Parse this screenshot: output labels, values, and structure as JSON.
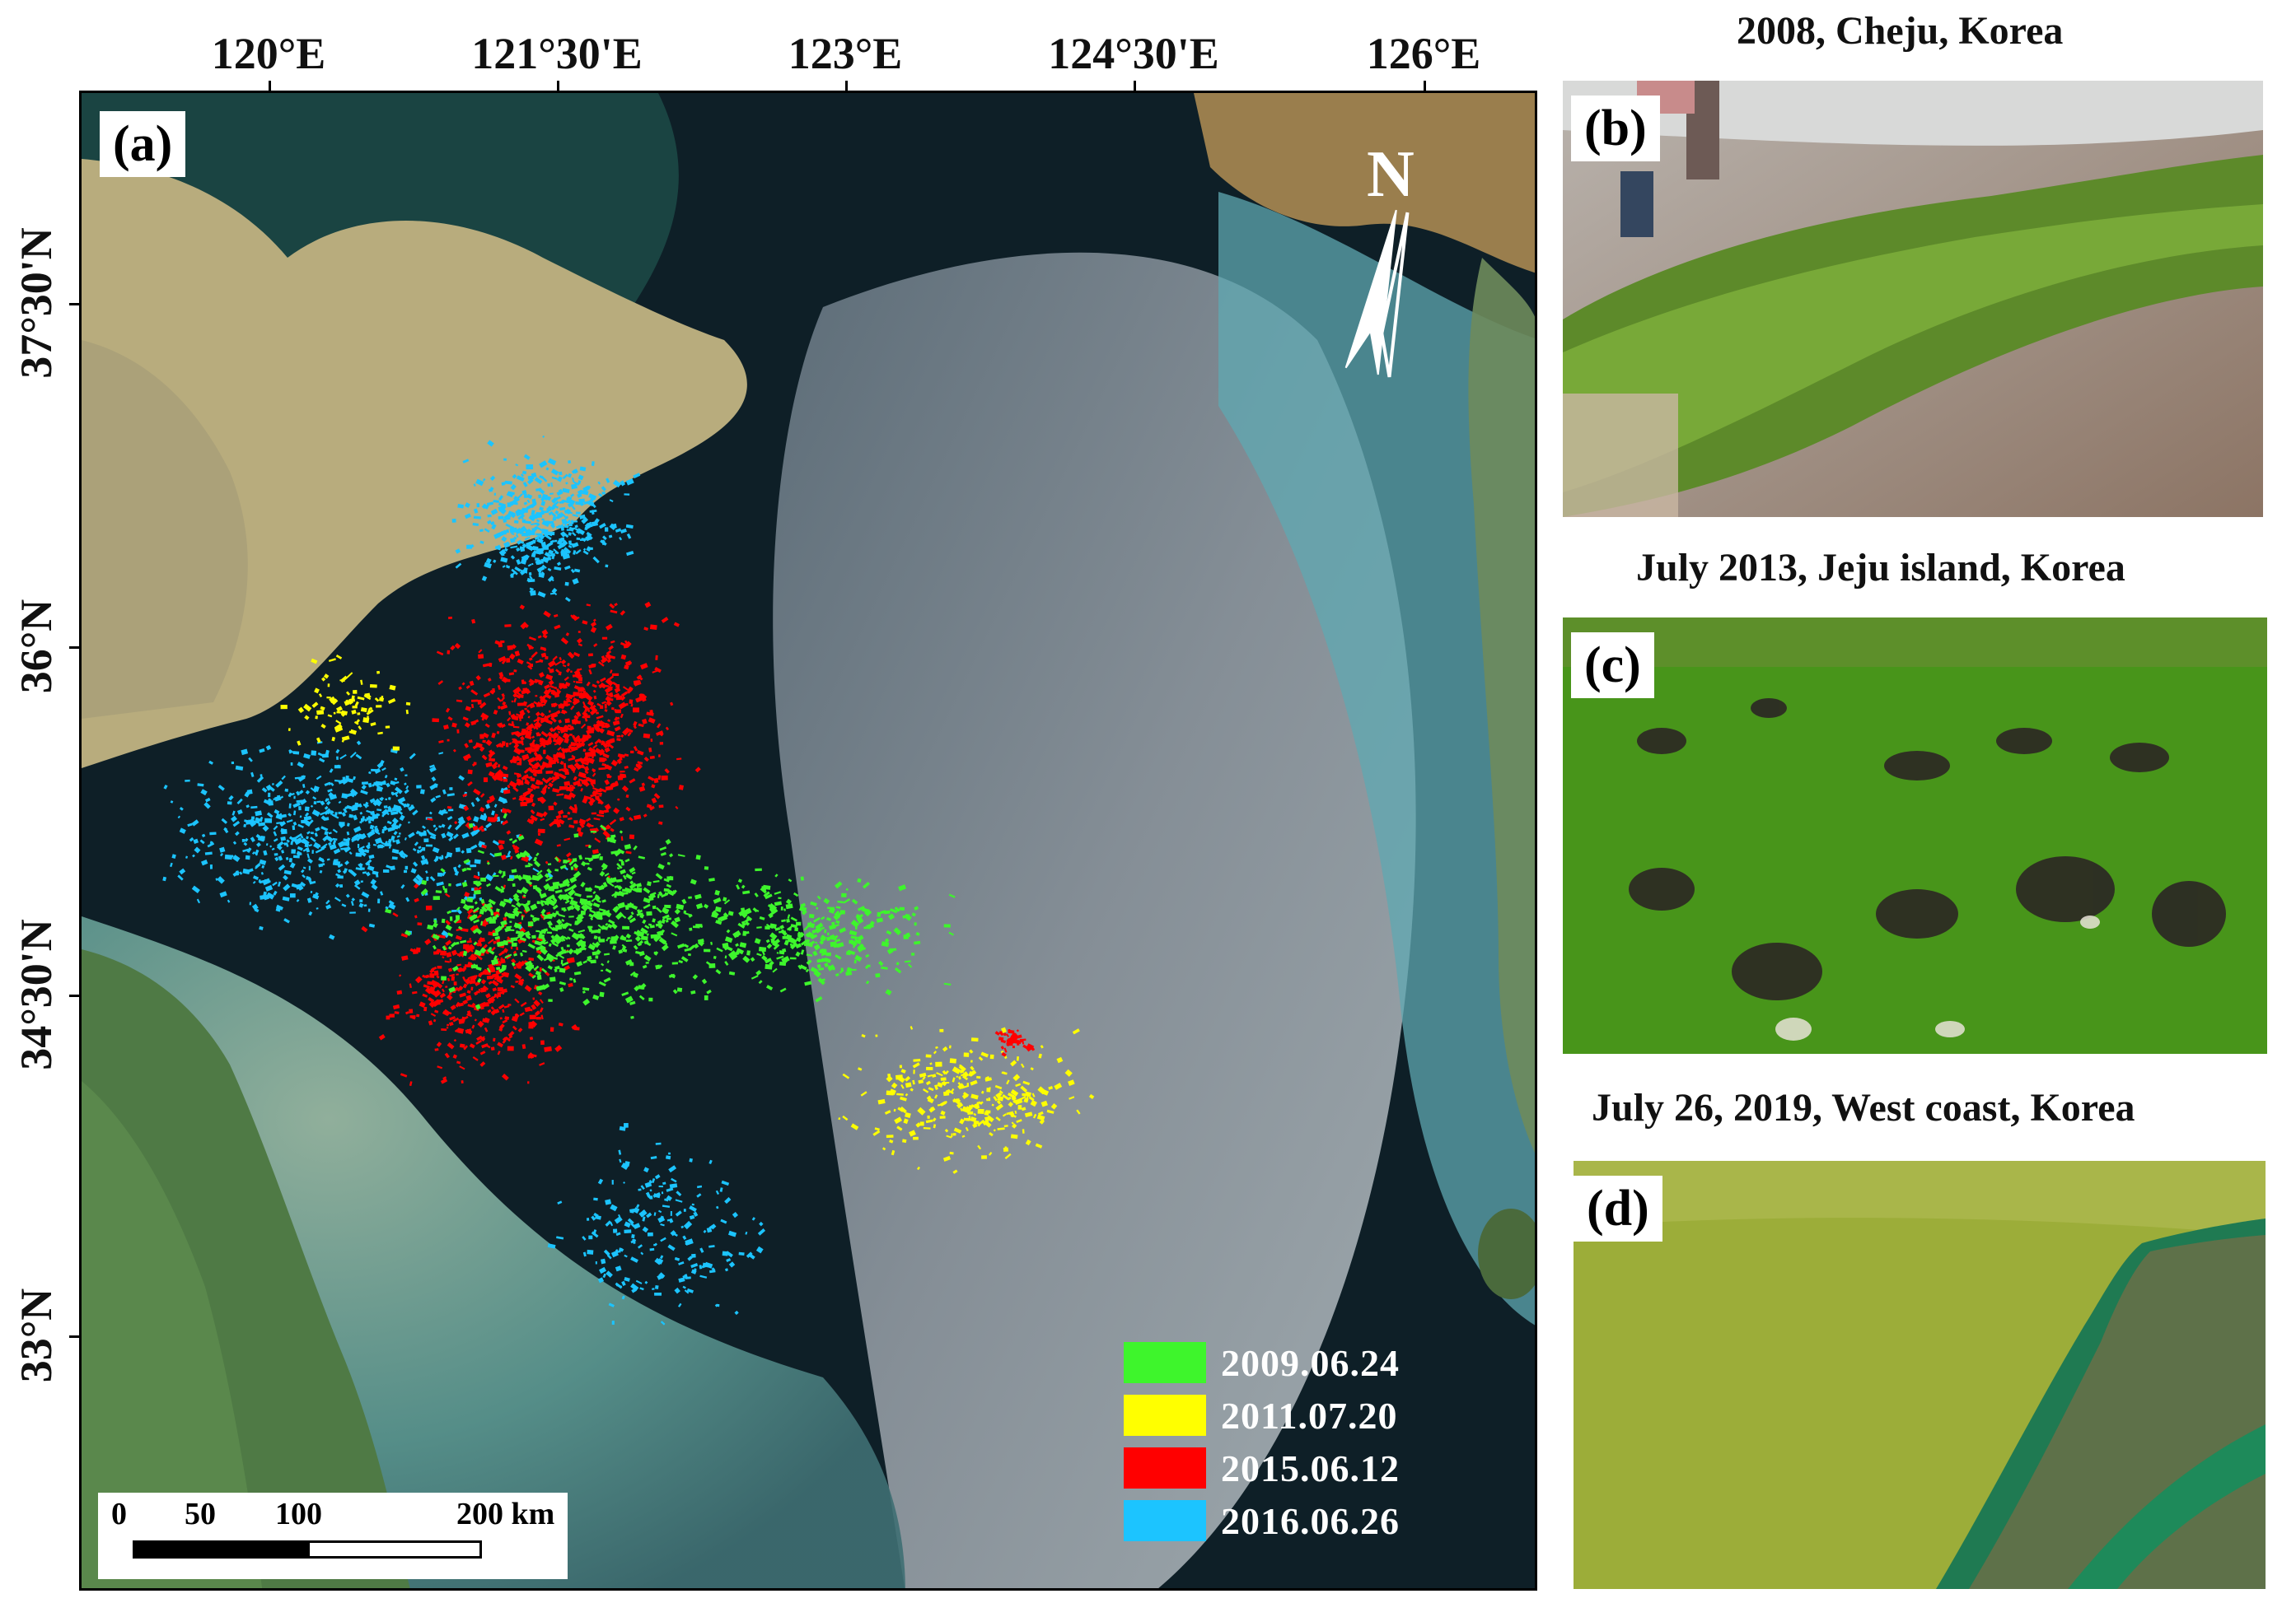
{
  "map": {
    "panel_label": "(a)",
    "lon_labels": [
      "120°E",
      "121°30'E",
      "123°E",
      "124°30'E",
      "126°E"
    ],
    "lat_labels": [
      "37°30'N",
      "36°N",
      "34°30'N",
      "33°N"
    ],
    "north_arrow": {
      "letter": "N",
      "icon": "north-arrow-icon"
    },
    "legend": [
      {
        "label": "2009.06.24",
        "color": "#3ef52c"
      },
      {
        "label": "2011.07.20",
        "color": "#ffff00"
      },
      {
        "label": "2015.06.12",
        "color": "#ff0000"
      },
      {
        "label": "2016.06.26",
        "color": "#1cc4ff"
      }
    ],
    "scale_bar": {
      "labels": [
        "0",
        "50",
        "100",
        "200 km"
      ]
    }
  },
  "photos": [
    {
      "label": "(b)",
      "title": "2008, Cheju, Korea"
    },
    {
      "label": "(c)",
      "title": "July 2013, Jeju island, Korea"
    },
    {
      "label": "(d)",
      "title": "July 26, 2019, West coast, Korea"
    }
  ]
}
